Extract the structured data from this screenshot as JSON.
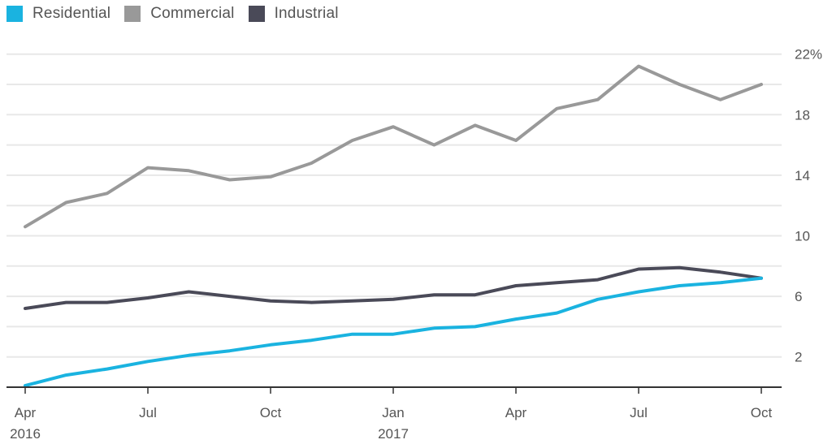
{
  "chart_data": {
    "type": "line",
    "title": "",
    "xlabel": "",
    "ylabel": "",
    "ylim": [
      0,
      22
    ],
    "y_ticks": [
      2,
      6,
      10,
      14,
      18,
      22
    ],
    "y_tick_labels": [
      "2",
      "6",
      "10",
      "14",
      "18",
      "22%"
    ],
    "y_gridlines": [
      2,
      4,
      6,
      8,
      10,
      12,
      14,
      16,
      18,
      20,
      22
    ],
    "grid": true,
    "legend_position": "top-left",
    "x": [
      "Apr 2016",
      "May 2016",
      "Jun 2016",
      "Jul 2016",
      "Aug 2016",
      "Sep 2016",
      "Oct 2016",
      "Nov 2016",
      "Dec 2016",
      "Jan 2017",
      "Feb 2017",
      "Mar 2017",
      "Apr 2017",
      "May 2017",
      "Jun 2017",
      "Jul 2017",
      "Aug 2017",
      "Sep 2017",
      "Oct 2017"
    ],
    "x_ticks": [
      {
        "index": 0,
        "label": "Apr",
        "sublabel": "2016"
      },
      {
        "index": 3,
        "label": "Jul",
        "sublabel": ""
      },
      {
        "index": 6,
        "label": "Oct",
        "sublabel": ""
      },
      {
        "index": 9,
        "label": "Jan",
        "sublabel": "2017"
      },
      {
        "index": 12,
        "label": "Apr",
        "sublabel": ""
      },
      {
        "index": 15,
        "label": "Jul",
        "sublabel": ""
      },
      {
        "index": 18,
        "label": "Oct",
        "sublabel": ""
      }
    ],
    "series": [
      {
        "name": "Residential",
        "color": "#1ab3e0",
        "values": [
          0.1,
          0.8,
          1.2,
          1.7,
          2.1,
          2.4,
          2.8,
          3.1,
          3.5,
          3.5,
          3.9,
          4.0,
          4.5,
          4.9,
          5.8,
          6.3,
          6.7,
          6.9,
          7.2
        ]
      },
      {
        "name": "Commercial",
        "color": "#999999",
        "values": [
          10.6,
          12.2,
          12.8,
          14.5,
          14.3,
          13.7,
          13.9,
          14.8,
          16.3,
          17.2,
          16.0,
          17.3,
          16.3,
          18.4,
          19.0,
          21.2,
          20.0,
          19.0,
          20.0
        ]
      },
      {
        "name": "Industrial",
        "color": "#4a4a58",
        "values": [
          5.2,
          5.6,
          5.6,
          5.9,
          6.3,
          6.0,
          5.7,
          5.6,
          5.7,
          5.8,
          6.1,
          6.1,
          6.7,
          6.9,
          7.1,
          7.8,
          7.9,
          7.6,
          7.2
        ]
      }
    ]
  },
  "legend": {
    "items": [
      {
        "label": "Residential",
        "color": "#1ab3e0"
      },
      {
        "label": "Commercial",
        "color": "#999999"
      },
      {
        "label": "Industrial",
        "color": "#4a4a58"
      }
    ]
  }
}
